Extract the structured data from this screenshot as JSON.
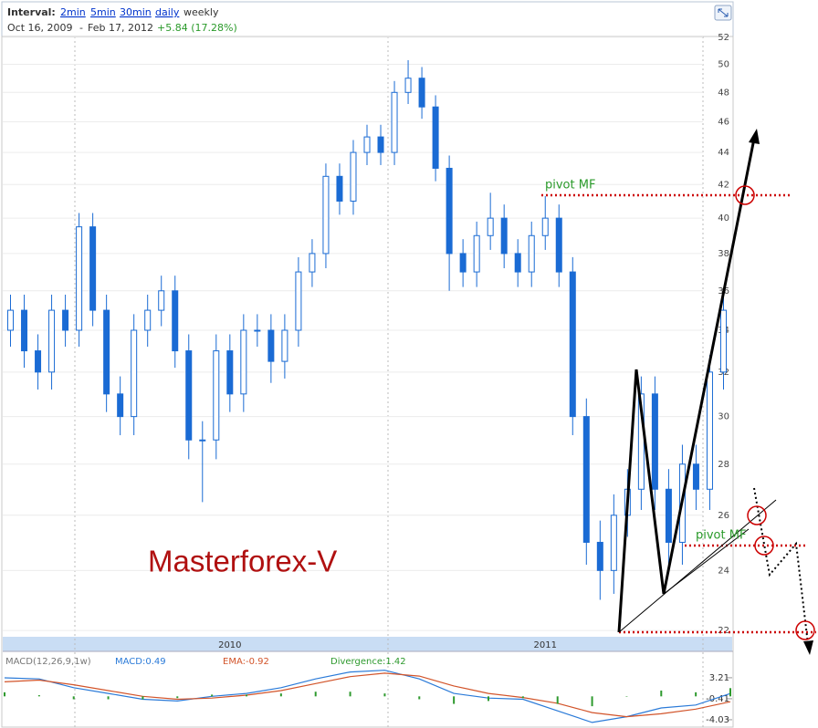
{
  "header": {
    "interval_label": "Interval:",
    "intervals": [
      "2min",
      "5min",
      "30min",
      "daily",
      "weekly"
    ],
    "start": "Oct 16, 2009",
    "separator": "-",
    "end": "Feb 17, 2012",
    "change": "+5.84 (17.28%)"
  },
  "annotations": [
    "pivot MF",
    "pivot MF",
    "Masterforex-V"
  ],
  "chart_data": [
    {
      "type": "candlestick",
      "color": "#1a6bd4",
      "log_scale": true,
      "grid": true,
      "ylim": [
        21.8,
        52.4
      ],
      "yticks": [
        22,
        24,
        26,
        28,
        30,
        32,
        34,
        36,
        38,
        40,
        42,
        44,
        46,
        48,
        50,
        52
      ],
      "categories": [
        null,
        null,
        null,
        null,
        null,
        null,
        null,
        null,
        null,
        null,
        null,
        null,
        null,
        null,
        null,
        null,
        "2010",
        null,
        null,
        null,
        null,
        null,
        null,
        null,
        null,
        null,
        null,
        null,
        null,
        null,
        null,
        null,
        null,
        null,
        null,
        null,
        null,
        null,
        null,
        "2011",
        null,
        null,
        null,
        null,
        null,
        null,
        null,
        null,
        null,
        null,
        null,
        null,
        null
      ],
      "open": [
        34,
        35,
        33,
        32,
        35,
        34,
        39.5,
        35,
        31,
        30,
        34,
        35,
        36,
        33,
        29,
        29,
        33,
        31,
        34,
        34,
        32.5,
        34,
        37,
        38,
        42.5,
        41,
        44,
        45,
        44,
        48,
        49,
        47,
        43,
        38,
        37,
        39,
        40,
        38,
        37,
        39,
        40,
        37,
        30,
        25,
        24,
        26,
        27,
        31,
        27,
        25,
        28,
        27,
        32
      ],
      "high": [
        35.8,
        35.8,
        33.8,
        35.8,
        35.8,
        40.3,
        40.3,
        35.8,
        31.8,
        34.8,
        35.8,
        36.8,
        36.8,
        33.8,
        29.8,
        33.8,
        33.8,
        34.8,
        34.8,
        34.8,
        34.8,
        37.8,
        38.8,
        43.3,
        43.3,
        44.8,
        45.8,
        45.8,
        48.8,
        50.3,
        49.8,
        47.8,
        43.8,
        38.8,
        39.8,
        41.5,
        40.8,
        38.8,
        39.8,
        41.3,
        40.8,
        37.8,
        30.8,
        25.8,
        26.8,
        27.8,
        31.8,
        31.8,
        27.8,
        28.8,
        28.8,
        32.8,
        35.8
      ],
      "low": [
        33.2,
        32.2,
        31.2,
        31.2,
        33.2,
        33.2,
        34.2,
        30.2,
        29.2,
        29.2,
        33.2,
        34.2,
        32.2,
        28.2,
        26.5,
        28.2,
        30.2,
        30.2,
        33.2,
        31.5,
        31.7,
        33.2,
        36.2,
        37.2,
        40.2,
        40.2,
        43.2,
        43.2,
        43.2,
        47.2,
        46.2,
        42.2,
        36,
        36.2,
        36.2,
        38.2,
        37.2,
        36.2,
        36.2,
        38.2,
        36.2,
        29.2,
        24.2,
        23,
        23.2,
        25.2,
        26.2,
        26.2,
        24.2,
        24.2,
        26.2,
        26.2,
        31.2
      ],
      "close": [
        35,
        33,
        32,
        35,
        34,
        39.5,
        35,
        31,
        30,
        34,
        35,
        36,
        33,
        29,
        29,
        33,
        31,
        34,
        34,
        32.5,
        34,
        37,
        38,
        42.5,
        41,
        44,
        45,
        44,
        48,
        49,
        47,
        43,
        38,
        37,
        39,
        40,
        38,
        37,
        39,
        40,
        37,
        30,
        25,
        24,
        26,
        27,
        31,
        27,
        25,
        28,
        27,
        32,
        35
      ]
    },
    {
      "type": "macd",
      "title": "MACD(12,26,9,1w)",
      "ylim": [
        -5.3,
        6.5
      ],
      "yticks": [
        -4.03,
        -0.41,
        3.21
      ],
      "series": [
        {
          "name": "MACD:0.49",
          "color": "#2a7ad8",
          "values": [
            3.2,
            3.0,
            1.5,
            0.5,
            -0.5,
            -0.8,
            0,
            0.5,
            1.5,
            3.0,
            4.2,
            4.5,
            3,
            0.5,
            -0.3,
            -0.5,
            -2.5,
            -4.5,
            -3.5,
            -2,
            -1.5,
            0.49
          ]
        },
        {
          "name": "EMA:-0.92",
          "color": "#d2542a",
          "values": [
            2.5,
            2.8,
            2.0,
            1.0,
            0,
            -0.5,
            -0.3,
            0.2,
            1.0,
            2.2,
            3.4,
            4.0,
            3.5,
            1.8,
            0.5,
            -0.2,
            -1.2,
            -2.8,
            -3.5,
            -3.0,
            -2.2,
            -0.92
          ]
        },
        {
          "name": "Divergence:1.42",
          "color": "#2e9a2e",
          "values": [
            0.7,
            0.2,
            -0.5,
            -0.5,
            -0.5,
            -0.3,
            0.3,
            0.3,
            0.5,
            0.8,
            0.8,
            0.5,
            -0.5,
            -1.3,
            -0.8,
            -0.3,
            -1.3,
            -1.7,
            0,
            1.0,
            0.7,
            1.42
          ]
        }
      ]
    }
  ]
}
